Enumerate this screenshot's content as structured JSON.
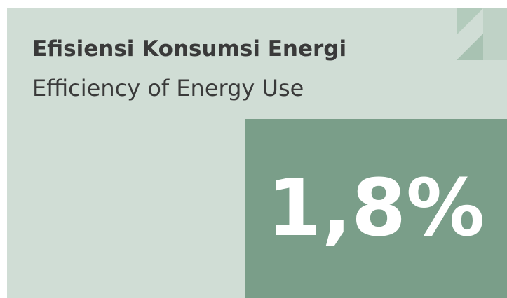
{
  "card": {
    "title": "Efisiensi Konsumsi Energi",
    "subtitle": "Efficiency of Energy Use",
    "value": "1,8%"
  }
}
